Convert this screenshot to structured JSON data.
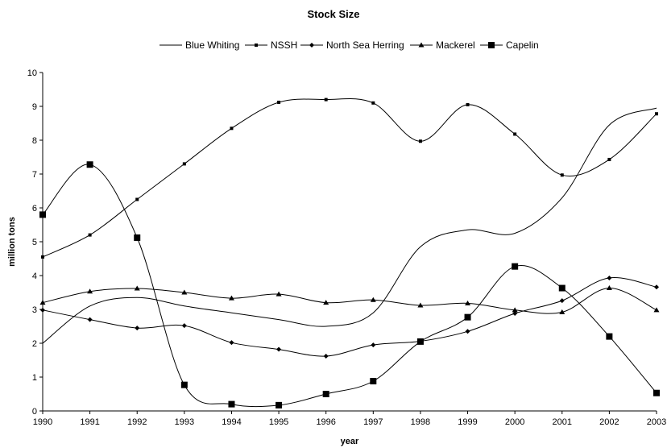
{
  "chart_data": {
    "type": "line",
    "title": "Stock Size",
    "xlabel": "year",
    "ylabel": "million tons",
    "xlim": [
      1990,
      2003
    ],
    "ylim": [
      0,
      10
    ],
    "grid": false,
    "legend_position": "top",
    "x": [
      1990,
      1991,
      1992,
      1993,
      1994,
      1995,
      1996,
      1997,
      1998,
      1999,
      2000,
      2001,
      2002,
      2003
    ],
    "x_ticks": [
      "1990",
      "1991",
      "1992",
      "1993",
      "1994",
      "1995",
      "1996",
      "1997",
      "1998",
      "1999",
      "2000",
      "2001",
      "2002",
      "2003"
    ],
    "y_ticks": [
      "0",
      "1",
      "2",
      "3",
      "4",
      "5",
      "6",
      "7",
      "8",
      "9",
      "10"
    ],
    "series": [
      {
        "name": "Blue Whiting",
        "marker": "none",
        "values": [
          2.0,
          3.1,
          3.35,
          3.1,
          2.9,
          2.7,
          2.5,
          2.9,
          4.85,
          5.35,
          5.25,
          6.3,
          8.45,
          8.95
        ]
      },
      {
        "name": "NSSH",
        "marker": "small-square",
        "values": [
          4.55,
          5.2,
          6.25,
          7.3,
          8.35,
          9.12,
          9.2,
          9.1,
          7.97,
          9.05,
          8.18,
          6.97,
          7.43,
          8.78
        ]
      },
      {
        "name": "North Sea Herring",
        "marker": "diamond",
        "values": [
          2.98,
          2.7,
          2.45,
          2.52,
          2.02,
          1.82,
          1.62,
          1.95,
          2.06,
          2.35,
          2.88,
          3.26,
          3.93,
          3.66
        ]
      },
      {
        "name": "Mackerel",
        "marker": "triangle",
        "values": [
          3.2,
          3.53,
          3.62,
          3.5,
          3.33,
          3.45,
          3.2,
          3.28,
          3.12,
          3.18,
          2.98,
          2.92,
          3.63,
          2.98
        ]
      },
      {
        "name": "Capelin",
        "marker": "large-square",
        "values": [
          5.8,
          7.28,
          5.12,
          0.77,
          0.2,
          0.17,
          0.5,
          0.88,
          2.05,
          2.77,
          4.27,
          3.63,
          2.2,
          0.53
        ]
      }
    ]
  }
}
